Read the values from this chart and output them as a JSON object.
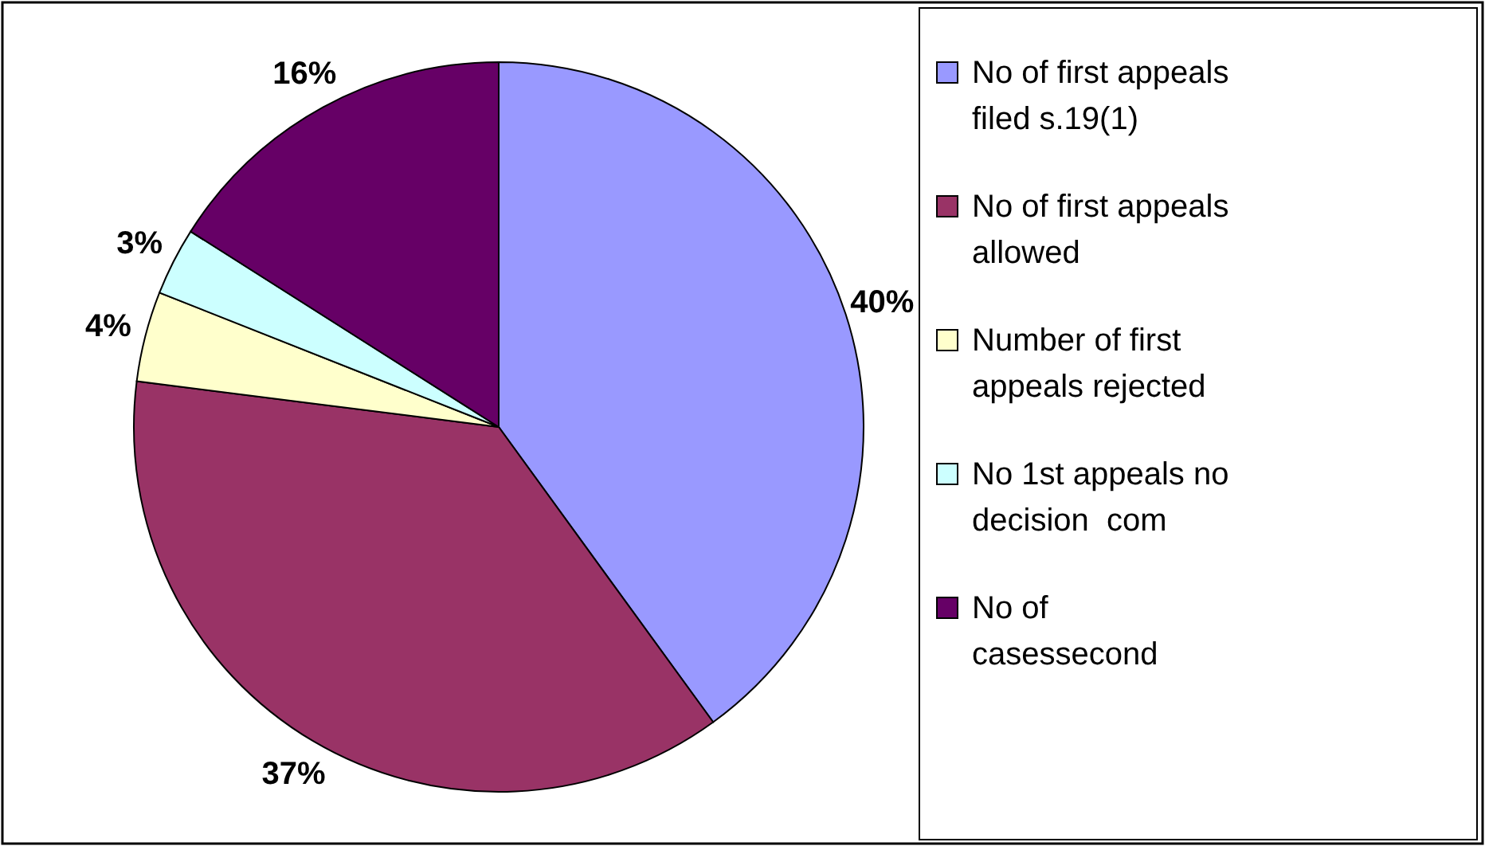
{
  "chart_data": {
    "type": "pie",
    "categories": [
      "No of first appeals filed s.19(1)",
      "No of first appeals allowed",
      "Number of first appeals rejected",
      "No 1st appeals no decision  com",
      "No of casessecond"
    ],
    "values": [
      40,
      37,
      4,
      3,
      16
    ],
    "colors": [
      "#9999ff",
      "#993366",
      "#ffffcc",
      "#ccffff",
      "#660066"
    ],
    "value_labels": [
      "40%",
      "37%",
      "4%",
      "3%",
      "16%"
    ],
    "legend": "right"
  }
}
